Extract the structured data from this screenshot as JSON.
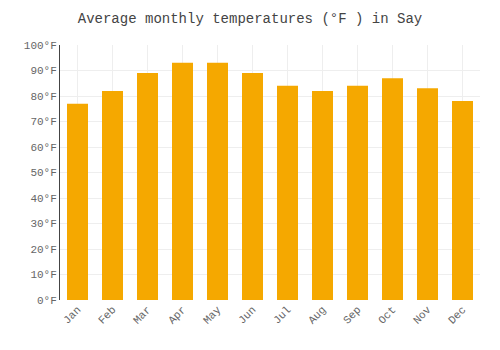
{
  "chart_data": {
    "type": "bar",
    "title": "Average monthly temperatures (°F ) in Say",
    "categories": [
      "Jan",
      "Feb",
      "Mar",
      "Apr",
      "May",
      "Jun",
      "Jul",
      "Aug",
      "Sep",
      "Oct",
      "Nov",
      "Dec"
    ],
    "values": [
      77,
      82,
      89,
      93,
      93,
      89,
      84,
      82,
      84,
      87,
      83,
      78
    ],
    "color": "#F5A800",
    "ylim": [
      0,
      100
    ],
    "yticks": [
      {
        "value": 0,
        "label": "0°F"
      },
      {
        "value": 10,
        "label": "10°F"
      },
      {
        "value": 20,
        "label": "20°F"
      },
      {
        "value": 30,
        "label": "30°F"
      },
      {
        "value": 40,
        "label": "40°F"
      },
      {
        "value": 50,
        "label": "50°F"
      },
      {
        "value": 60,
        "label": "60°F"
      },
      {
        "value": 70,
        "label": "70°F"
      },
      {
        "value": 80,
        "label": "80°F"
      },
      {
        "value": 90,
        "label": "90°F"
      },
      {
        "value": 100,
        "label": "100°F"
      }
    ],
    "grid": true
  }
}
